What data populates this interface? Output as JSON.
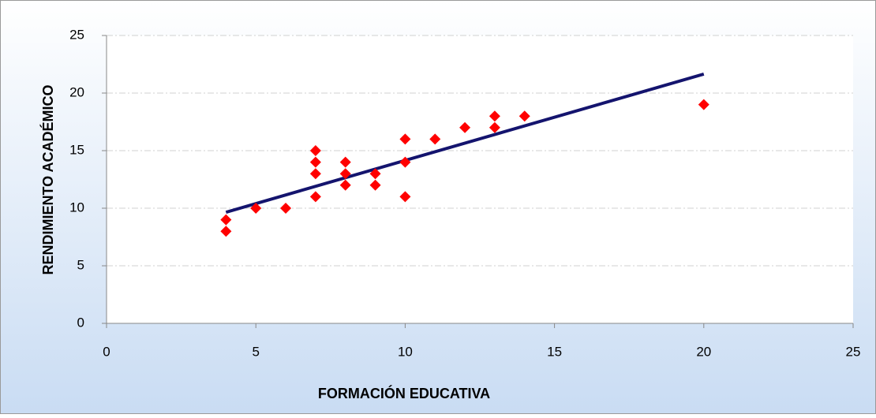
{
  "chart_data": {
    "type": "scatter",
    "x_label": "FORMACIÓN EDUCATIVA",
    "y_label": "RENDIMIENTO ACADÉMICO",
    "series": [
      {
        "color": "#ff0000",
        "x": [
          4,
          4,
          5,
          6,
          7,
          7,
          7,
          7,
          8,
          8,
          8,
          9,
          9,
          10,
          10,
          10,
          11,
          12,
          13,
          13,
          14,
          20
        ],
        "values": [
          9,
          8,
          10,
          10,
          15,
          14,
          13,
          11,
          14,
          13,
          12,
          13,
          12,
          16,
          14,
          11,
          16,
          17,
          18,
          17,
          18,
          19
        ]
      }
    ],
    "trendline": {
      "color": "#14146e",
      "x": [
        4,
        20
      ],
      "values": [
        9.65,
        21.65
      ]
    },
    "xlim": [
      0,
      25
    ],
    "xticks": [
      0,
      5,
      10,
      15,
      20,
      25
    ],
    "ylim": [
      0,
      25
    ],
    "yticks": [
      0,
      5,
      10,
      15,
      20,
      25
    ],
    "grid": true
  }
}
